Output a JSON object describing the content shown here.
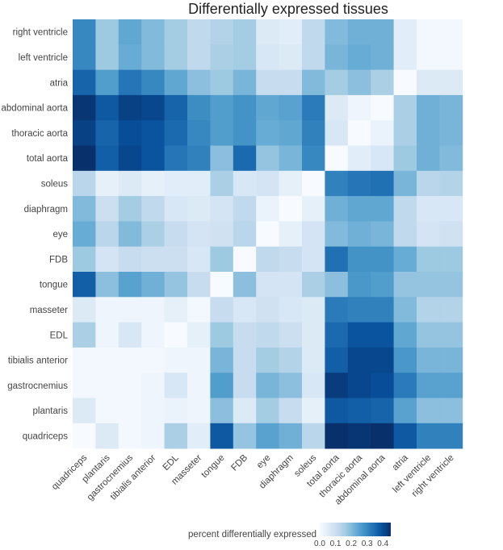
{
  "chart_data": {
    "type": "heatmap",
    "title": "Differentially expressed tissues",
    "rows": [
      "right ventricle",
      "left ventricle",
      "atria",
      "abdominal aorta",
      "thoracic aorta",
      "total aorta",
      "soleus",
      "diaphragm",
      "eye",
      "FDB",
      "tongue",
      "masseter",
      "EDL",
      "tibialis anterior",
      "gastrocnemius",
      "plantaris",
      "quadriceps"
    ],
    "columns": [
      "quadriceps",
      "plantaris",
      "gastrocnemius",
      "tibialis anterior",
      "EDL",
      "masseter",
      "tongue",
      "FDB",
      "eye",
      "diaphragm",
      "soleus",
      "total aorta",
      "thoracic aorta",
      "abdominal aorta",
      "atria",
      "left ventricle",
      "right ventricle"
    ],
    "values": [
      [
        0.3,
        0.17,
        0.24,
        0.2,
        0.16,
        0.12,
        0.14,
        0.16,
        0.06,
        0.05,
        0.12,
        0.2,
        0.22,
        0.22,
        0.05,
        0.01,
        0.01
      ],
      [
        0.3,
        0.17,
        0.23,
        0.2,
        0.16,
        0.12,
        0.15,
        0.16,
        0.07,
        0.06,
        0.12,
        0.21,
        0.23,
        0.22,
        0.05,
        0.01,
        0.01
      ],
      [
        0.36,
        0.26,
        0.33,
        0.3,
        0.24,
        0.19,
        0.17,
        0.21,
        0.11,
        0.11,
        0.2,
        0.16,
        0.19,
        0.15,
        0.0,
        0.06,
        0.06
      ],
      [
        0.44,
        0.38,
        0.42,
        0.41,
        0.36,
        0.29,
        0.26,
        0.28,
        0.24,
        0.25,
        0.32,
        0.06,
        0.02,
        0.0,
        0.15,
        0.22,
        0.21
      ],
      [
        0.42,
        0.36,
        0.4,
        0.39,
        0.35,
        0.3,
        0.26,
        0.28,
        0.23,
        0.24,
        0.31,
        0.07,
        0.0,
        0.03,
        0.15,
        0.22,
        0.21
      ],
      [
        0.46,
        0.37,
        0.41,
        0.39,
        0.33,
        0.31,
        0.19,
        0.35,
        0.18,
        0.21,
        0.3,
        0.0,
        0.05,
        0.07,
        0.17,
        0.22,
        0.2
      ],
      [
        0.13,
        0.04,
        0.06,
        0.04,
        0.05,
        0.05,
        0.15,
        0.07,
        0.08,
        0.04,
        0.0,
        0.31,
        0.33,
        0.34,
        0.21,
        0.13,
        0.14
      ],
      [
        0.2,
        0.1,
        0.16,
        0.12,
        0.07,
        0.06,
        0.08,
        0.12,
        0.03,
        0.0,
        0.04,
        0.22,
        0.24,
        0.24,
        0.12,
        0.07,
        0.07
      ],
      [
        0.23,
        0.13,
        0.2,
        0.15,
        0.11,
        0.08,
        0.09,
        0.13,
        0.0,
        0.04,
        0.08,
        0.2,
        0.22,
        0.21,
        0.12,
        0.08,
        0.09
      ],
      [
        0.17,
        0.08,
        0.11,
        0.1,
        0.1,
        0.07,
        0.17,
        0.0,
        0.12,
        0.11,
        0.08,
        0.34,
        0.28,
        0.28,
        0.23,
        0.17,
        0.17
      ],
      [
        0.37,
        0.19,
        0.25,
        0.22,
        0.18,
        0.11,
        0.0,
        0.19,
        0.08,
        0.08,
        0.15,
        0.19,
        0.27,
        0.26,
        0.18,
        0.18,
        0.18
      ],
      [
        0.06,
        0.02,
        0.02,
        0.02,
        0.04,
        0.01,
        0.11,
        0.07,
        0.09,
        0.07,
        0.06,
        0.32,
        0.31,
        0.31,
        0.2,
        0.14,
        0.14
      ],
      [
        0.15,
        0.02,
        0.07,
        0.02,
        0.0,
        0.04,
        0.17,
        0.11,
        0.12,
        0.1,
        0.06,
        0.35,
        0.39,
        0.39,
        0.24,
        0.18,
        0.18
      ],
      [
        0.01,
        0.01,
        0.01,
        0.01,
        0.02,
        0.02,
        0.21,
        0.11,
        0.16,
        0.14,
        0.06,
        0.37,
        0.41,
        0.41,
        0.27,
        0.21,
        0.21
      ],
      [
        0.01,
        0.01,
        0.01,
        0.02,
        0.07,
        0.02,
        0.26,
        0.11,
        0.21,
        0.19,
        0.07,
        0.43,
        0.41,
        0.4,
        0.32,
        0.25,
        0.25
      ],
      [
        0.06,
        0.01,
        0.01,
        0.02,
        0.03,
        0.02,
        0.19,
        0.06,
        0.16,
        0.11,
        0.04,
        0.38,
        0.37,
        0.36,
        0.25,
        0.19,
        0.19
      ],
      [
        0.0,
        0.06,
        0.01,
        0.02,
        0.15,
        0.05,
        0.38,
        0.18,
        0.25,
        0.22,
        0.13,
        0.46,
        0.44,
        0.46,
        0.38,
        0.31,
        0.31
      ]
    ],
    "colorbar": {
      "title": "percent differentially expressed",
      "ticks": [
        "0.0",
        "0.1",
        "0.2",
        "0.3",
        "0.4"
      ],
      "range": [
        0,
        0.45
      ],
      "colors": [
        "#f7fbff",
        "#deebf7",
        "#c6dbef",
        "#9ecae1",
        "#6baed6",
        "#4292c6",
        "#2171b5",
        "#08519c",
        "#08306b"
      ]
    }
  }
}
